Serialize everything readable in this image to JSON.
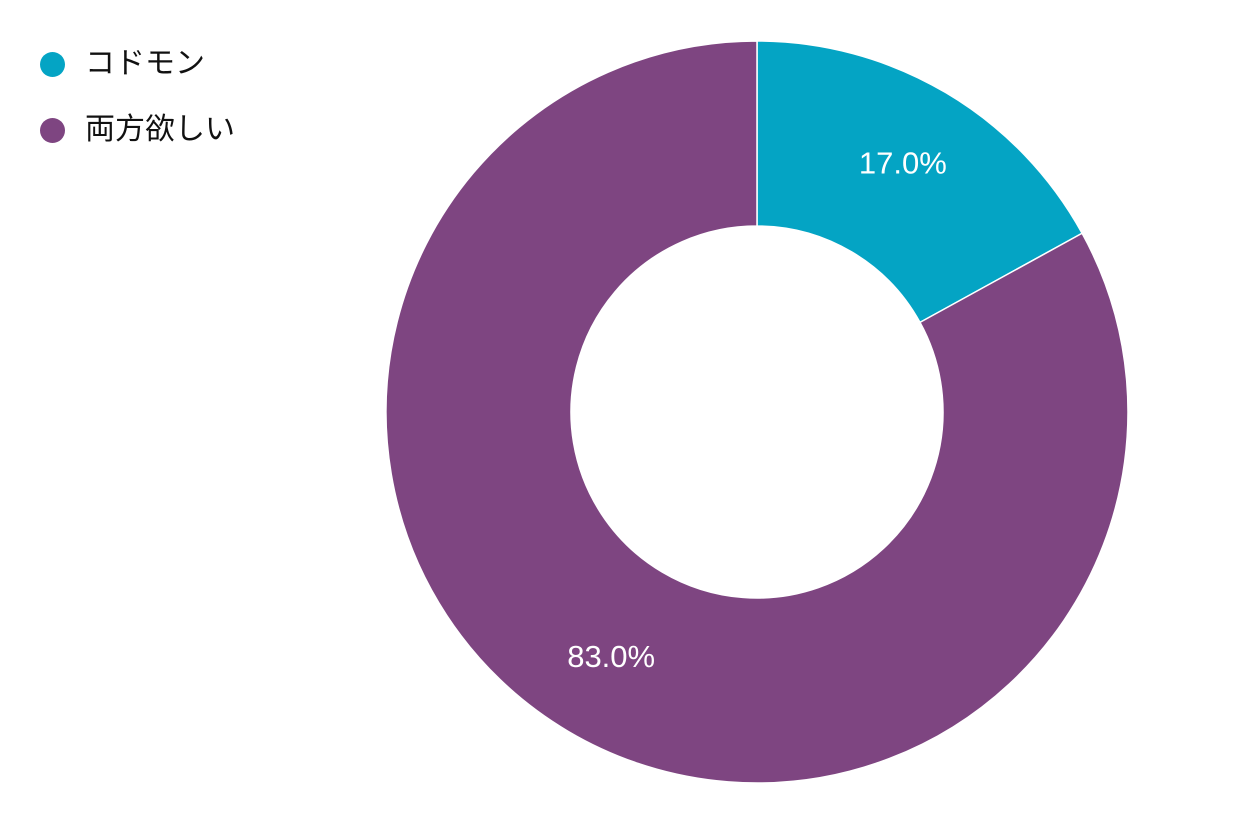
{
  "chart_data": {
    "type": "pie",
    "variant": "donut",
    "categories": [
      "コドモン",
      "両方欲しい"
    ],
    "values": [
      17.0,
      83.0
    ],
    "labels": [
      "17.0%",
      "83.0%"
    ],
    "colors": [
      "#04A4C4",
      "#7E4581"
    ],
    "legend_position": "top-left",
    "title": ""
  }
}
